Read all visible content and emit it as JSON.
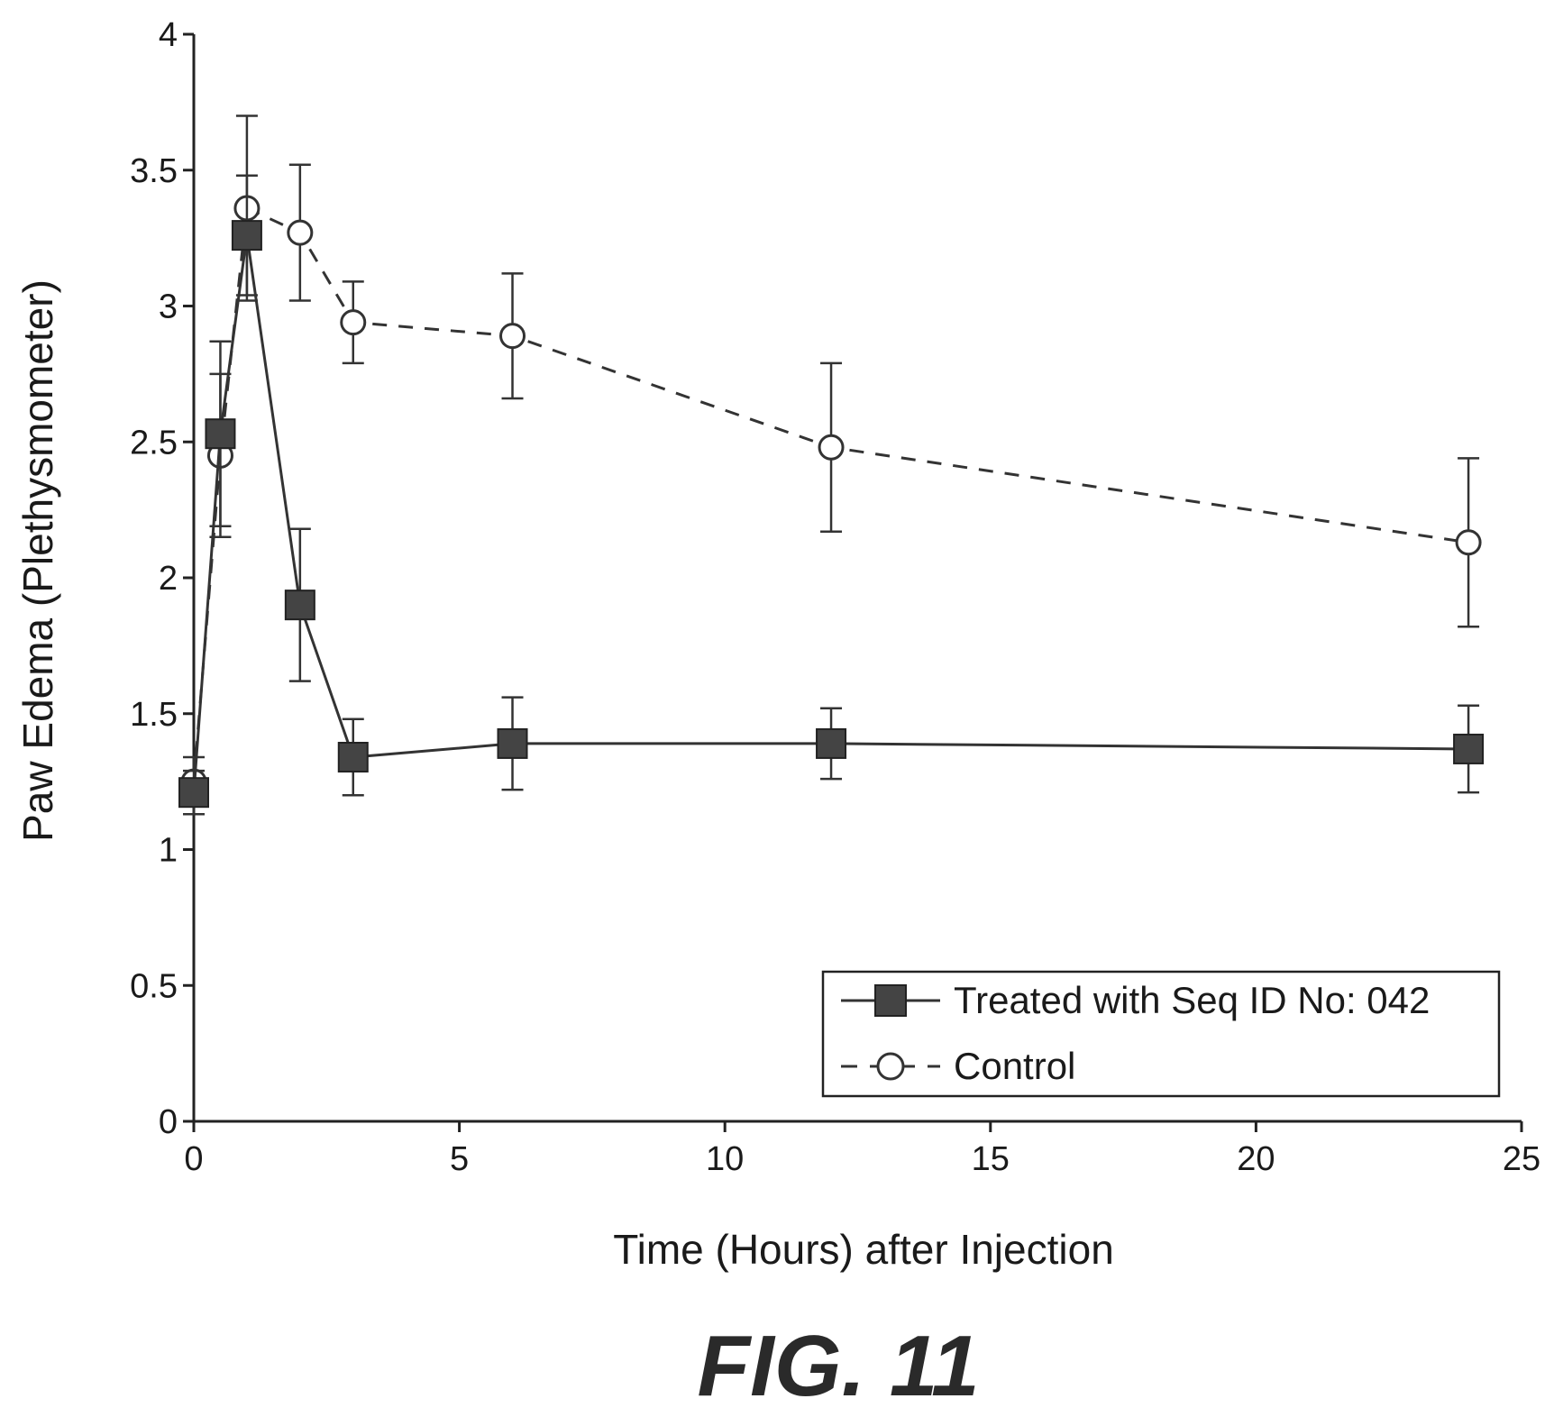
{
  "chart_data": {
    "type": "line",
    "xlabel": "Time (Hours) after Injection",
    "ylabel": "Paw Edema (Plethysmometer)",
    "xlim": [
      0,
      25
    ],
    "ylim": [
      0,
      4
    ],
    "x_ticks": [
      0,
      5,
      10,
      15,
      20,
      25
    ],
    "y_ticks": [
      0,
      0.5,
      1,
      1.5,
      2,
      2.5,
      3,
      3.5,
      4
    ],
    "x_tick_labels": [
      "0",
      "5",
      "10",
      "15",
      "20",
      "25"
    ],
    "y_tick_labels": [
      "0",
      "0.5",
      "1",
      "1.5",
      "2",
      "2.5",
      "3",
      "3.5",
      "4"
    ],
    "grid": false,
    "legend_position": "bottom-right",
    "series": [
      {
        "name": "Treated with Seq ID No: 042",
        "marker": "filled-square",
        "line_style": "solid",
        "color": "#333333",
        "x": [
          0,
          0.5,
          1,
          2,
          3,
          6,
          12,
          24
        ],
        "y": [
          1.21,
          2.53,
          3.26,
          1.9,
          1.34,
          1.39,
          1.39,
          1.37
        ],
        "error": [
          0.08,
          0.34,
          0.22,
          0.28,
          0.14,
          0.17,
          0.13,
          0.16
        ]
      },
      {
        "name": "Control",
        "marker": "open-circle",
        "line_style": "dashed",
        "color": "#333333",
        "x": [
          0,
          0.5,
          1,
          2,
          3,
          6,
          12,
          24
        ],
        "y": [
          1.25,
          2.45,
          3.36,
          3.27,
          2.94,
          2.89,
          2.48,
          2.13
        ],
        "error": [
          0.09,
          0.3,
          0.34,
          0.25,
          0.15,
          0.23,
          0.31,
          0.31
        ]
      }
    ]
  },
  "figure_label": "FIG. 11"
}
